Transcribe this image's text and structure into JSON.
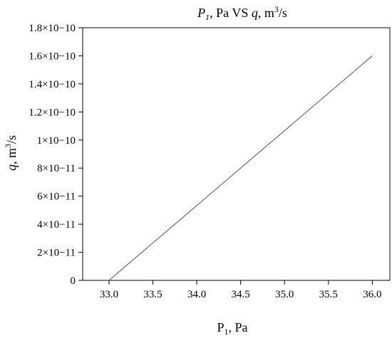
{
  "chart_data": {
    "type": "line",
    "title": "P1, Pa VS q, m3/s",
    "xlabel": "P1, Pa",
    "ylabel": "q, m3/s",
    "xlim": [
      32.7,
      36.2
    ],
    "ylim": [
      0,
      1.8e-10
    ],
    "x_ticks": [
      33.0,
      33.5,
      34.0,
      34.5,
      35.0,
      35.5,
      36.0
    ],
    "x_tick_labels": [
      "33.0",
      "33.5",
      "34.0",
      "34.5",
      "35.0",
      "35.5",
      "36.0"
    ],
    "y_ticks": [
      0,
      2e-11,
      4e-11,
      6e-11,
      8e-11,
      1e-10,
      1.2e-10,
      1.4e-10,
      1.6e-10,
      1.8e-10
    ],
    "y_tick_labels": [
      "0",
      "2×10−11",
      "4×10−11",
      "6×10−11",
      "8×10−11",
      "1×10−10",
      "1.2×10−10",
      "1.4×10−10",
      "1.6×10−10",
      "1.8×10−10"
    ],
    "grid": false,
    "series": [
      {
        "x": [
          33.0,
          36.0
        ],
        "y": [
          0,
          1.6e-10
        ],
        "color": "#555555"
      }
    ]
  }
}
